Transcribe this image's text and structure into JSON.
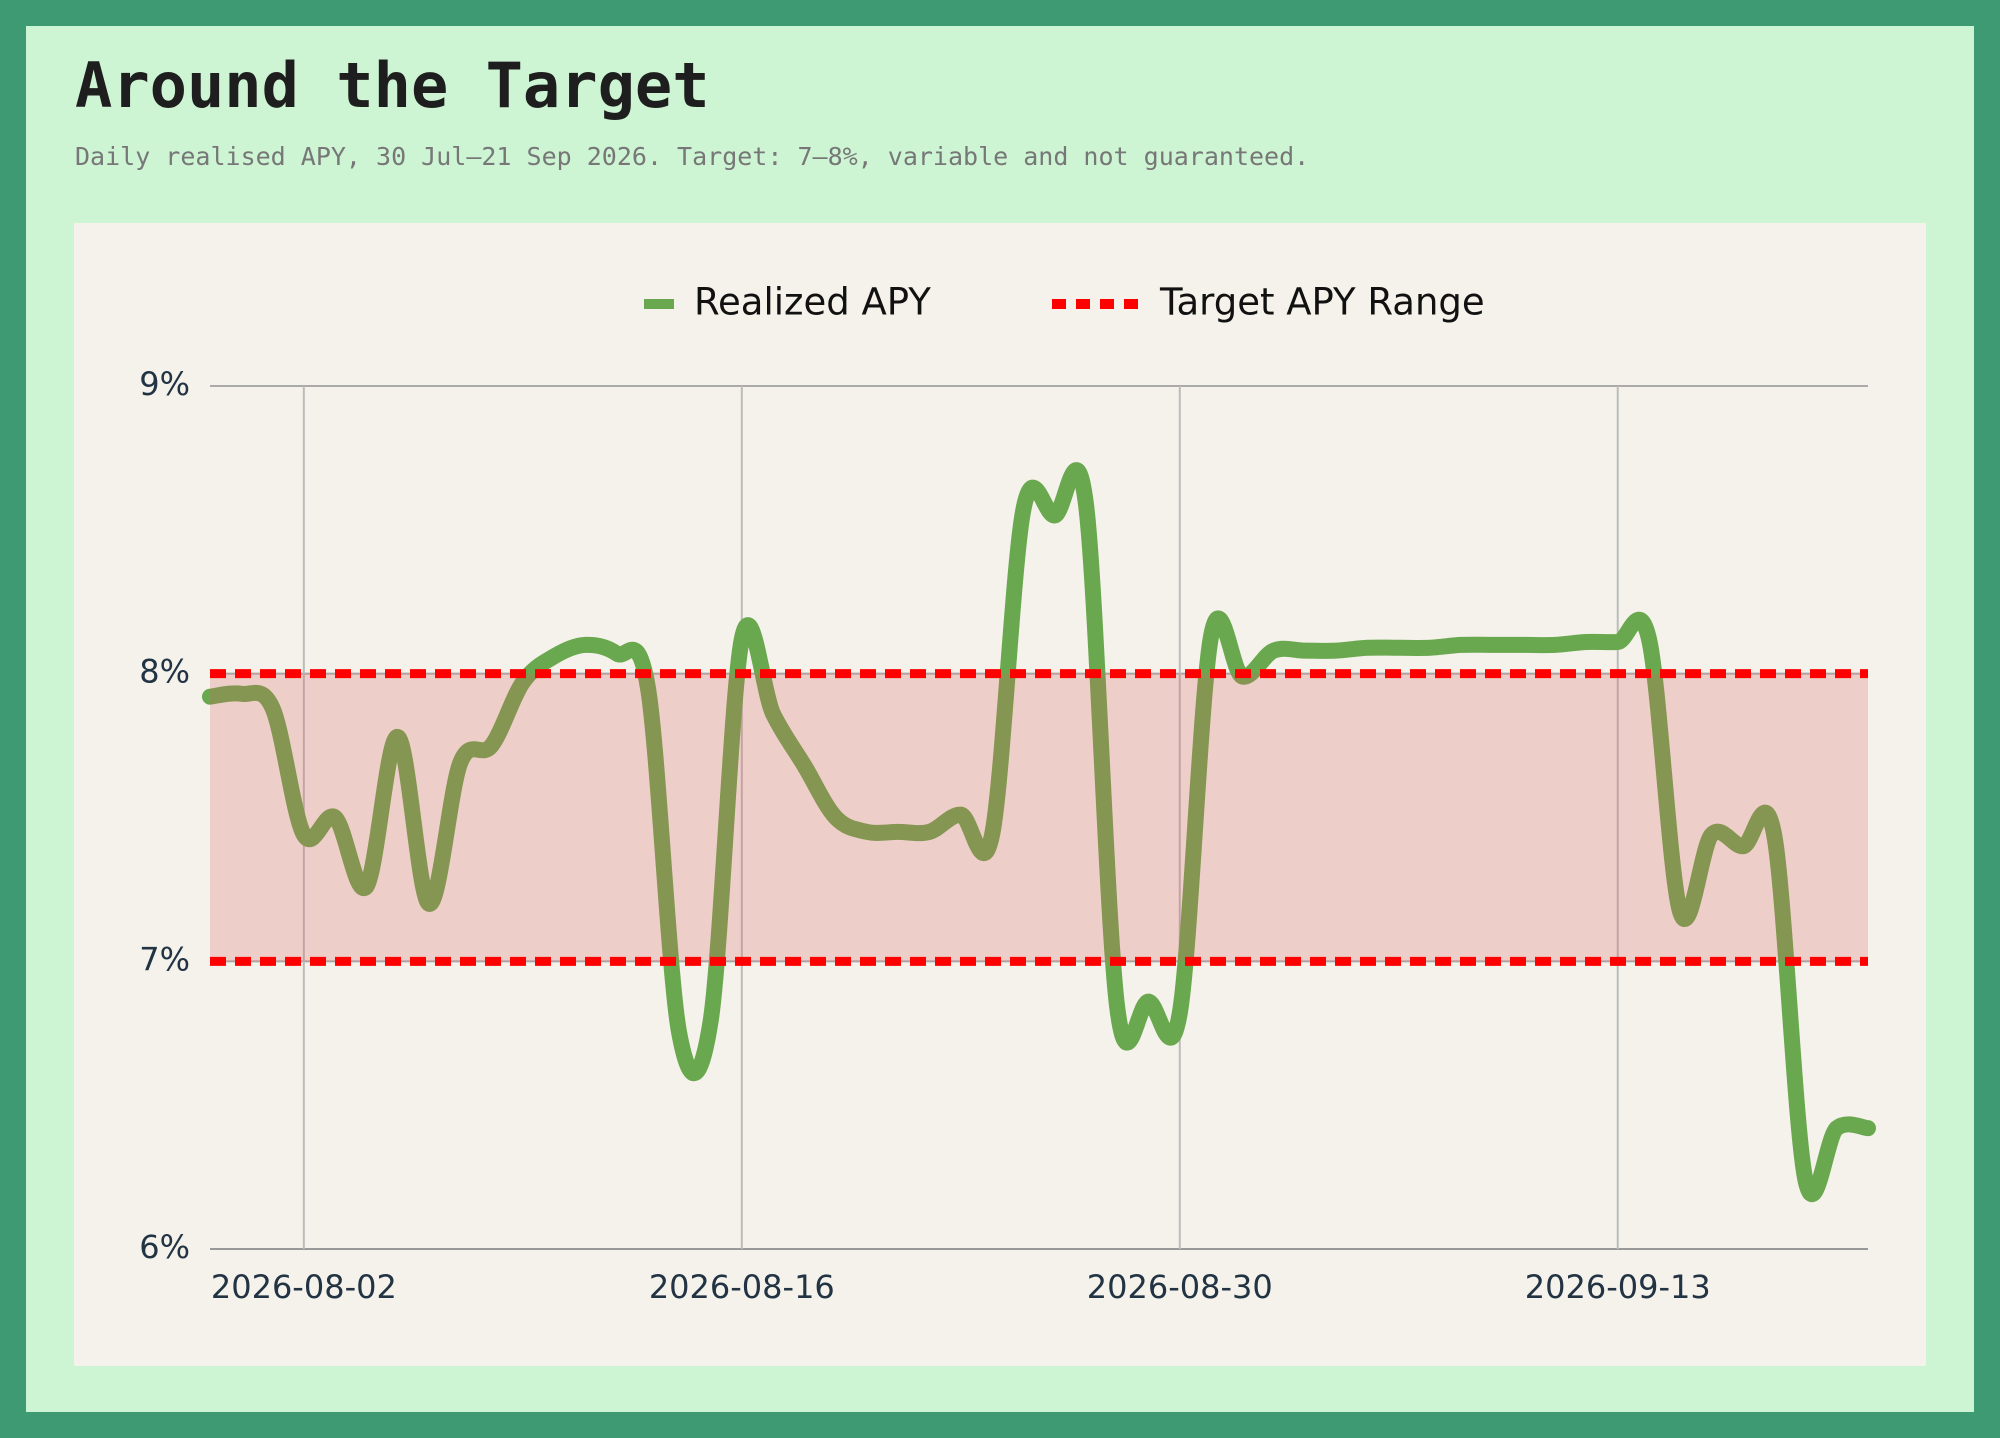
{
  "chart_data": {
    "type": "line",
    "title": "Around the Target",
    "subtitle": "Daily realised APY, 30 Jul–21 Sep 2026. Target: 7–8%, variable and not guaranteed.",
    "x": [
      "2026-07-30",
      "2026-07-31",
      "2026-08-01",
      "2026-08-02",
      "2026-08-03",
      "2026-08-04",
      "2026-08-05",
      "2026-08-06",
      "2026-08-07",
      "2026-08-08",
      "2026-08-09",
      "2026-08-10",
      "2026-08-11",
      "2026-08-12",
      "2026-08-13",
      "2026-08-14",
      "2026-08-15",
      "2026-08-16",
      "2026-08-17",
      "2026-08-18",
      "2026-08-19",
      "2026-08-20",
      "2026-08-21",
      "2026-08-22",
      "2026-08-23",
      "2026-08-24",
      "2026-08-25",
      "2026-08-26",
      "2026-08-27",
      "2026-08-28",
      "2026-08-29",
      "2026-08-30",
      "2026-08-31",
      "2026-09-01",
      "2026-09-02",
      "2026-09-03",
      "2026-09-04",
      "2026-09-05",
      "2026-09-06",
      "2026-09-07",
      "2026-09-08",
      "2026-09-09",
      "2026-09-10",
      "2026-09-11",
      "2026-09-12",
      "2026-09-13",
      "2026-09-14",
      "2026-09-15",
      "2026-09-16",
      "2026-09-17",
      "2026-09-18",
      "2026-09-19",
      "2026-09-20",
      "2026-09-21"
    ],
    "series": [
      {
        "name": "Realized APY",
        "color": "#6aa84f",
        "values": [
          7.92,
          7.93,
          7.88,
          7.44,
          7.5,
          7.26,
          7.78,
          7.2,
          7.69,
          7.75,
          7.97,
          8.06,
          8.1,
          8.07,
          7.95,
          6.75,
          6.79,
          8.12,
          7.86,
          7.68,
          7.5,
          7.45,
          7.45,
          7.45,
          7.51,
          7.44,
          8.57,
          8.55,
          8.59,
          6.84,
          6.86,
          6.82,
          8.13,
          7.99,
          8.08,
          8.08,
          8.08,
          8.09,
          8.09,
          8.09,
          8.1,
          8.1,
          8.1,
          8.1,
          8.11,
          8.11,
          8.12,
          7.17,
          7.44,
          7.4,
          7.44,
          6.24,
          6.42,
          6.42
        ]
      }
    ],
    "target_range": {
      "name": "Target APY Range",
      "color": "#ff0000",
      "low": 7,
      "high": 8
    },
    "xlim": [
      "2026-07-30",
      "2026-09-21"
    ],
    "xticks": [
      "2026-08-02",
      "2026-08-16",
      "2026-08-30",
      "2026-09-13"
    ],
    "ylim": [
      6,
      9
    ],
    "yticks": [
      {
        "value": 6,
        "label": "6%"
      },
      {
        "value": 7,
        "label": "7%"
      },
      {
        "value": 8,
        "label": "8%"
      },
      {
        "value": 9,
        "label": "9%"
      }
    ],
    "grid": true,
    "legend": "top"
  }
}
